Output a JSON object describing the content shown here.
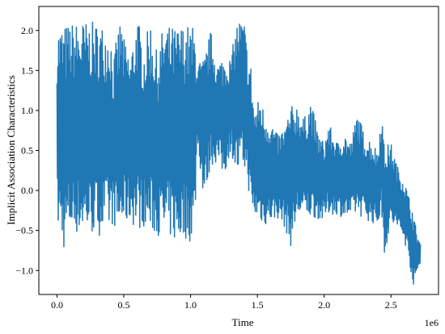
{
  "chart_data": {
    "type": "line",
    "xlabel": "Time",
    "ylabel": "Implicit Association Characteristics",
    "x_offset_label": "1e6",
    "xlim": [
      -0.136,
      2.856
    ],
    "ylim": [
      -1.3,
      2.3
    ],
    "xticks": [
      0.0,
      0.5,
      1.0,
      1.5,
      2.0,
      2.5
    ],
    "xtick_labels": [
      "0.0",
      "0.5",
      "1.0",
      "1.5",
      "2.0",
      "2.5"
    ],
    "yticks": [
      -1.0,
      -0.5,
      0.0,
      0.5,
      1.0,
      1.5,
      2.0
    ],
    "ytick_labels": [
      "−1.0",
      "−0.5",
      "0.0",
      "0.5",
      "1.0",
      "1.5",
      "2.0"
    ],
    "grid": false,
    "series": [
      {
        "color": "#1f77b4",
        "envelope": [
          {
            "x": 0.0,
            "high": 2.05,
            "low": -0.5
          },
          {
            "x": 0.02,
            "high": 2.08,
            "low": -0.55
          },
          {
            "x": 0.05,
            "high": 2.07,
            "low": -0.75
          },
          {
            "x": 0.1,
            "high": 2.1,
            "low": -0.55
          },
          {
            "x": 0.2,
            "high": 2.12,
            "low": -0.55
          },
          {
            "x": 0.3,
            "high": 2.1,
            "low": -0.57
          },
          {
            "x": 0.4,
            "high": 2.05,
            "low": -0.52
          },
          {
            "x": 0.42,
            "high": 1.6,
            "low": -0.4
          },
          {
            "x": 0.45,
            "high": 1.95,
            "low": -0.55
          },
          {
            "x": 0.48,
            "high": 2.2,
            "low": -0.55
          },
          {
            "x": 0.5,
            "high": 1.9,
            "low": -0.45
          },
          {
            "x": 0.55,
            "high": 1.7,
            "low": -0.4
          },
          {
            "x": 0.6,
            "high": 2.2,
            "low": -0.5
          },
          {
            "x": 0.65,
            "high": 1.8,
            "low": -0.45
          },
          {
            "x": 0.7,
            "high": 2.15,
            "low": -0.55
          },
          {
            "x": 0.75,
            "high": 1.7,
            "low": -0.55
          },
          {
            "x": 0.8,
            "high": 2.1,
            "low": -0.65
          },
          {
            "x": 0.85,
            "high": 2.05,
            "low": -0.6
          },
          {
            "x": 0.9,
            "high": 2.05,
            "low": -0.7
          },
          {
            "x": 0.95,
            "high": 2.08,
            "low": -0.6
          },
          {
            "x": 1.0,
            "high": 2.07,
            "low": -0.65
          },
          {
            "x": 1.03,
            "high": 2.05,
            "low": -0.55
          },
          {
            "x": 1.05,
            "high": 1.6,
            "low": 0.6
          },
          {
            "x": 1.1,
            "high": 1.65,
            "low": -0.15
          },
          {
            "x": 1.15,
            "high": 2.0,
            "low": 0.3
          },
          {
            "x": 1.2,
            "high": 1.6,
            "low": 0.35
          },
          {
            "x": 1.25,
            "high": 1.7,
            "low": 0.15
          },
          {
            "x": 1.3,
            "high": 1.65,
            "low": 0.5
          },
          {
            "x": 1.35,
            "high": 2.15,
            "low": 0.15
          },
          {
            "x": 1.4,
            "high": 2.15,
            "low": 0.25
          },
          {
            "x": 1.43,
            "high": 1.7,
            "low": 0.1
          },
          {
            "x": 1.45,
            "high": 1.6,
            "low": -0.3
          },
          {
            "x": 1.48,
            "high": 1.0,
            "low": -0.35
          },
          {
            "x": 1.52,
            "high": 1.2,
            "low": -0.4
          },
          {
            "x": 1.55,
            "high": 1.0,
            "low": -0.45
          },
          {
            "x": 1.6,
            "high": 0.9,
            "low": -0.4
          },
          {
            "x": 1.65,
            "high": 0.7,
            "low": -0.35
          },
          {
            "x": 1.7,
            "high": 0.8,
            "low": -0.45
          },
          {
            "x": 1.75,
            "high": 1.05,
            "low": -0.7
          },
          {
            "x": 1.8,
            "high": 1.1,
            "low": -0.35
          },
          {
            "x": 1.85,
            "high": 0.9,
            "low": -0.35
          },
          {
            "x": 1.9,
            "high": 1.15,
            "low": -0.35
          },
          {
            "x": 1.95,
            "high": 0.75,
            "low": -0.35
          },
          {
            "x": 2.0,
            "high": 0.6,
            "low": -0.4
          },
          {
            "x": 2.03,
            "high": 0.85,
            "low": -0.3
          },
          {
            "x": 2.1,
            "high": 0.6,
            "low": -0.3
          },
          {
            "x": 2.15,
            "high": 0.75,
            "low": -0.35
          },
          {
            "x": 2.2,
            "high": 0.6,
            "low": -0.35
          },
          {
            "x": 2.25,
            "high": 1.0,
            "low": -0.3
          },
          {
            "x": 2.3,
            "high": 0.7,
            "low": -0.35
          },
          {
            "x": 2.35,
            "high": 0.65,
            "low": -0.4
          },
          {
            "x": 2.4,
            "high": 0.5,
            "low": -0.45
          },
          {
            "x": 2.43,
            "high": 1.05,
            "low": -0.3
          },
          {
            "x": 2.45,
            "high": 0.55,
            "low": -0.8
          },
          {
            "x": 2.5,
            "high": 0.6,
            "low": -0.45
          },
          {
            "x": 2.55,
            "high": 0.3,
            "low": -0.5
          },
          {
            "x": 2.6,
            "high": 0.15,
            "low": -0.65
          },
          {
            "x": 2.63,
            "high": -0.05,
            "low": -0.8
          },
          {
            "x": 2.66,
            "high": -0.2,
            "low": -1.15
          },
          {
            "x": 2.68,
            "high": -0.4,
            "low": -1.22
          },
          {
            "x": 2.7,
            "high": -0.55,
            "low": -1.0
          },
          {
            "x": 2.72,
            "high": -0.65,
            "low": -0.95
          }
        ]
      }
    ]
  }
}
